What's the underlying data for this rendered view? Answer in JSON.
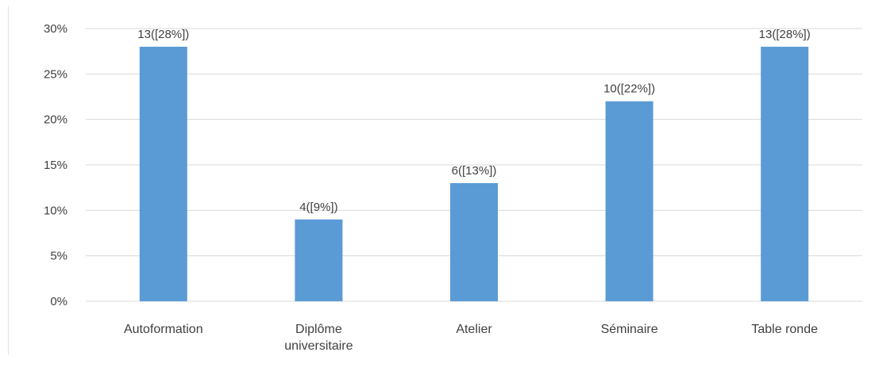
{
  "chart_data": {
    "type": "bar",
    "categories": [
      [
        "Autoformation"
      ],
      [
        "Diplôme",
        "universitaire"
      ],
      [
        "Atelier"
      ],
      [
        "Séminaire"
      ],
      [
        "Table ronde"
      ]
    ],
    "values": [
      28,
      9,
      13,
      22,
      28
    ],
    "data_labels": [
      "13([28%])",
      "4([9%])",
      "6([13%])",
      "10([22%])",
      "13([28%])"
    ],
    "ylim": [
      0,
      30
    ],
    "yticks": [
      0,
      5,
      10,
      15,
      20,
      25,
      30
    ],
    "ytick_labels": [
      "0%",
      "5%",
      "10%",
      "15%",
      "20%",
      "25%",
      "30%"
    ],
    "grid": true,
    "legend": "none",
    "title": "",
    "xlabel": "",
    "ylabel": "",
    "colors": {
      "bar": "#5b9bd5",
      "grid": "#d9d9d9",
      "text": "#404040"
    }
  }
}
